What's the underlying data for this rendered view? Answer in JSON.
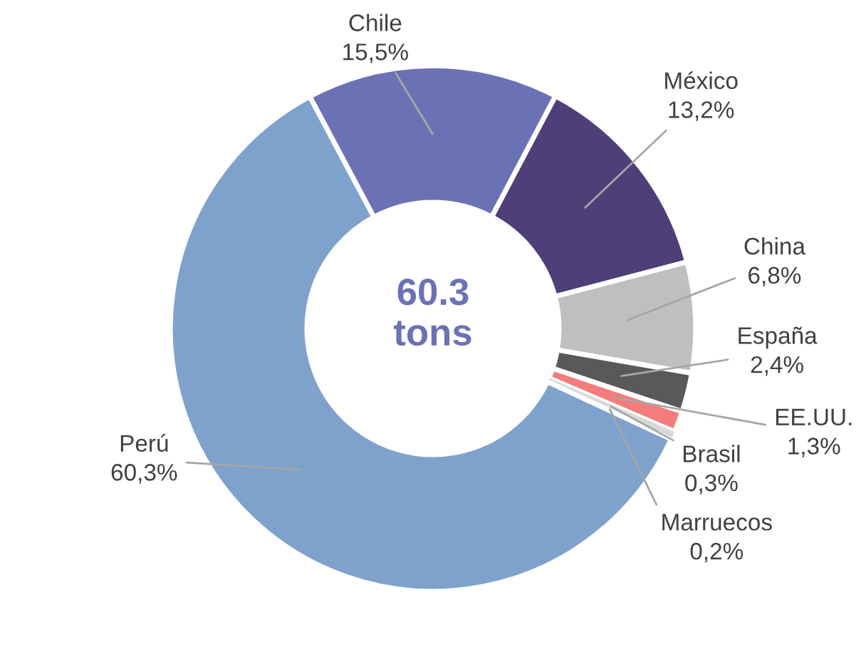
{
  "chart_data": {
    "type": "donut",
    "categories": [
      "Chile",
      "México",
      "China",
      "España",
      "EE.UU.",
      "Brasil",
      "Marruecos",
      "Perú"
    ],
    "values": [
      15.5,
      13.2,
      6.8,
      2.4,
      1.3,
      0.3,
      0.2,
      60.3
    ],
    "value_labels": [
      "15,5%",
      "13,2%",
      "6,8%",
      "2,4%",
      "1,3%",
      "0,3%",
      "0,2%",
      "60,3%"
    ],
    "colors": [
      "#6b72b4",
      "#4e3f78",
      "#bfbfbf",
      "#595959",
      "#f47c7c",
      "#d9d9d9",
      "#9dc3e6",
      "#7fa2cd"
    ],
    "annotations": [
      "60.3\ntons"
    ],
    "legend": false
  }
}
